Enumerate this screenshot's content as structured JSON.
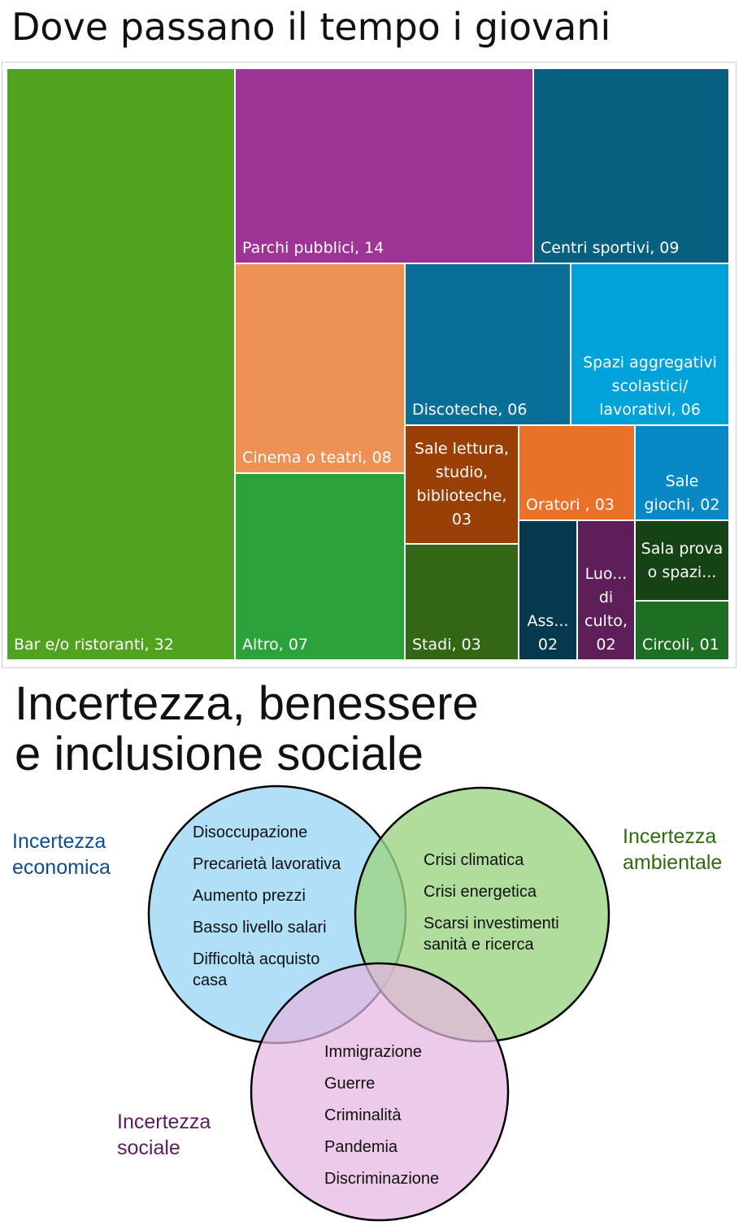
{
  "title": "Dove passano il tempo i giovani",
  "chart_data": {
    "type": "treemap",
    "tiles": [
      {
        "name": "Bar e/o ristoranti",
        "label": "Bar e/o ristoranti, 32",
        "value": 32,
        "color": "#51A21E"
      },
      {
        "name": "Parchi pubblici",
        "label": "Parchi pubblici, 14",
        "value": 14,
        "color": "#9E3495"
      },
      {
        "name": "Centri sportivi",
        "label": "Centri sportivi, 09",
        "value": 9,
        "color": "#07607F"
      },
      {
        "name": "Cinema o teatri",
        "label": "Cinema o teatri, 08",
        "value": 8,
        "color": "#EE9155"
      },
      {
        "name": "Altro",
        "label": "Altro, 07",
        "value": 7,
        "color": "#2BA33A"
      },
      {
        "name": "Discoteche",
        "label": "Discoteche, 06",
        "value": 6,
        "color": "#0A6F98"
      },
      {
        "name": "Spazi aggregativi scolastici/lavorativi",
        "label": "Spazi aggregativi scolastici/ lavorativi, 06",
        "value": 6,
        "color": "#00A2DA"
      },
      {
        "name": "Sale lettura, studio, biblioteche",
        "label": "Sale lettura, studio, biblioteche, 03",
        "value": 3,
        "color": "#9A3F05"
      },
      {
        "name": "Stadi",
        "label": "Stadi, 03",
        "value": 3,
        "color": "#336716"
      },
      {
        "name": "Oratori",
        "label": "Oratori , 03",
        "value": 3,
        "color": "#EA7128"
      },
      {
        "name": "Sale giochi",
        "label": "Sale giochi, 02",
        "value": 2,
        "color": "#0889C6"
      },
      {
        "name": "Ass...",
        "label": "Ass... 02",
        "value": 2,
        "color": "#06394F"
      },
      {
        "name": "Luo... di culto",
        "label": "Luo... di culto, 02",
        "value": 2,
        "color": "#5E1E5A"
      },
      {
        "name": "Sala prova o spazi...",
        "label": "Sala prova o spazi...",
        "value": 1,
        "color": "#154315"
      },
      {
        "name": "Circoli",
        "label": "Circoli, 01",
        "value": 1,
        "color": "#1E6E23"
      }
    ]
  },
  "section2": {
    "title_line1": "Incertezza, benessere",
    "title_line2": "e inclusione sociale"
  },
  "venn": {
    "economica": {
      "label_line1": "Incertezza",
      "label_line2": "economica",
      "label_color": "#0E4C8A",
      "fill": "#A9DCF7",
      "items": [
        "Disoccupazione",
        "Precarietà lavorativa",
        "Aumento prezzi",
        "Basso livello salari",
        "Difficoltà acquisto casa"
      ]
    },
    "ambientale": {
      "label_line1": "Incertezza",
      "label_line2": "ambientale",
      "label_color": "#2E6A0E",
      "fill": "#9DD483",
      "items": [
        "Crisi climatica",
        "Crisi energetica",
        "Scarsi investimenti sanità e ricerca"
      ]
    },
    "sociale": {
      "label_line1": "Incertezza",
      "label_line2": "sociale",
      "label_color": "#5A1E5C",
      "fill": "#E4B5E1",
      "items": [
        "Immigrazione",
        "Guerre",
        "Criminalità",
        "Pandemia",
        "Discriminazione"
      ]
    }
  }
}
